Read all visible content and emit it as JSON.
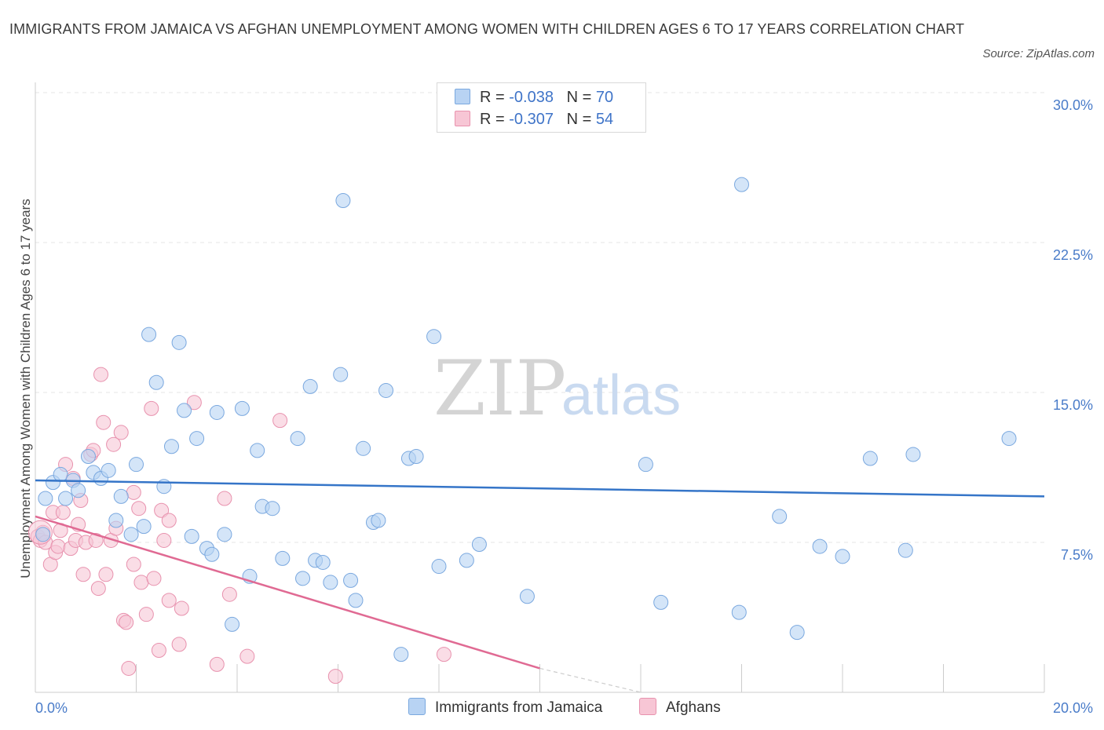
{
  "title": "IMMIGRANTS FROM JAMAICA VS AFGHAN UNEMPLOYMENT AMONG WOMEN WITH CHILDREN AGES 6 TO 17 YEARS CORRELATION CHART",
  "source": "Source: ZipAtlas.com",
  "watermark": {
    "zip": "ZIP",
    "atlas": "atlas"
  },
  "legend": {
    "rows": [
      {
        "r_label": "R =",
        "r_value": "-0.038",
        "n_label": "N =",
        "n_value": "70"
      },
      {
        "r_label": "R =",
        "r_value": "-0.307",
        "n_label": "N =",
        "n_value": "54"
      }
    ]
  },
  "bottom_legend": [
    "Immigrants from Jamaica",
    "Afghans"
  ],
  "colors": {
    "jamaica_fill": "#b8d3f3",
    "jamaica_stroke": "#7aa8df",
    "jamaica_line": "#3575c8",
    "afghan_fill": "#f7c6d5",
    "afghan_stroke": "#e892ae",
    "afghan_line": "#e06a93",
    "tick_text": "#4a7cc9",
    "grid": "#e4e4e4"
  },
  "chart_data": {
    "type": "scatter",
    "title": "IMMIGRANTS FROM JAMAICA VS AFGHAN UNEMPLOYMENT AMONG WOMEN WITH CHILDREN AGES 6 TO 17 YEARS CORRELATION CHART",
    "xlabel": "",
    "ylabel": "Unemployment Among Women with Children Ages 6 to 17 years",
    "xlim": [
      0,
      20
    ],
    "ylim": [
      0,
      30
    ],
    "x_tick_labels": [
      "0.0%",
      "20.0%"
    ],
    "y_ticks": [
      {
        "value": 7.5,
        "label": "7.5%"
      },
      {
        "value": 15,
        "label": "15.0%"
      },
      {
        "value": 22.5,
        "label": "22.5%"
      },
      {
        "value": 30,
        "label": "30.0%"
      }
    ],
    "grid": "horizontal dashed",
    "legend_position": "top-center",
    "series": [
      {
        "name": "Immigrants from Jamaica",
        "r": -0.038,
        "n": 70,
        "trend": {
          "x": [
            0,
            20
          ],
          "y": [
            10.6,
            9.8
          ]
        },
        "points": [
          [
            0.15,
            7.9
          ],
          [
            0.2,
            9.7
          ],
          [
            0.35,
            10.5
          ],
          [
            0.5,
            10.9
          ],
          [
            0.6,
            9.7
          ],
          [
            0.75,
            10.6
          ],
          [
            0.85,
            10.1
          ],
          [
            1.05,
            11.8
          ],
          [
            1.15,
            11.0
          ],
          [
            1.3,
            10.7
          ],
          [
            1.45,
            11.1
          ],
          [
            1.6,
            8.6
          ],
          [
            1.7,
            9.8
          ],
          [
            1.9,
            7.9
          ],
          [
            2.0,
            11.4
          ],
          [
            2.15,
            8.3
          ],
          [
            2.25,
            17.9
          ],
          [
            2.4,
            15.5
          ],
          [
            2.55,
            10.3
          ],
          [
            2.7,
            12.3
          ],
          [
            2.85,
            17.5
          ],
          [
            2.95,
            14.1
          ],
          [
            3.1,
            7.8
          ],
          [
            3.2,
            12.7
          ],
          [
            3.4,
            7.2
          ],
          [
            3.5,
            6.9
          ],
          [
            3.6,
            14.0
          ],
          [
            3.75,
            7.9
          ],
          [
            3.9,
            3.4
          ],
          [
            4.1,
            14.2
          ],
          [
            4.25,
            5.8
          ],
          [
            4.4,
            12.1
          ],
          [
            4.5,
            9.3
          ],
          [
            4.7,
            9.2
          ],
          [
            4.9,
            6.7
          ],
          [
            5.2,
            12.7
          ],
          [
            5.3,
            5.7
          ],
          [
            5.45,
            15.3
          ],
          [
            5.55,
            6.6
          ],
          [
            5.7,
            6.5
          ],
          [
            5.85,
            5.5
          ],
          [
            6.05,
            15.9
          ],
          [
            6.1,
            24.6
          ],
          [
            6.25,
            5.6
          ],
          [
            6.35,
            4.6
          ],
          [
            6.5,
            12.2
          ],
          [
            6.7,
            8.5
          ],
          [
            6.8,
            8.6
          ],
          [
            6.95,
            15.1
          ],
          [
            7.25,
            1.9
          ],
          [
            7.4,
            11.7
          ],
          [
            7.55,
            11.8
          ],
          [
            7.9,
            17.8
          ],
          [
            8.0,
            6.3
          ],
          [
            8.55,
            6.6
          ],
          [
            8.8,
            7.4
          ],
          [
            9.25,
            30.0
          ],
          [
            9.75,
            4.8
          ],
          [
            12.1,
            11.4
          ],
          [
            12.4,
            4.5
          ],
          [
            14.0,
            25.4
          ],
          [
            13.95,
            4.0
          ],
          [
            14.75,
            8.8
          ],
          [
            15.1,
            3.0
          ],
          [
            15.55,
            7.3
          ],
          [
            16.0,
            6.8
          ],
          [
            16.55,
            11.7
          ],
          [
            17.25,
            7.1
          ],
          [
            17.4,
            11.9
          ],
          [
            19.3,
            12.7
          ]
        ]
      },
      {
        "name": "Afghans",
        "r": -0.307,
        "n": 54,
        "trend": {
          "x": [
            0,
            10.0
          ],
          "y": [
            8.8,
            1.2
          ]
        },
        "trend_dashed": {
          "x": [
            10.0,
            12.0
          ],
          "y": [
            1.2,
            0.0
          ]
        },
        "points": [
          [
            0.05,
            7.8
          ],
          [
            0.1,
            7.6
          ],
          [
            0.15,
            8.0
          ],
          [
            0.2,
            7.5
          ],
          [
            0.3,
            6.4
          ],
          [
            0.35,
            9.0
          ],
          [
            0.4,
            7.0
          ],
          [
            0.45,
            7.3
          ],
          [
            0.5,
            8.1
          ],
          [
            0.55,
            9.0
          ],
          [
            0.6,
            11.4
          ],
          [
            0.7,
            7.2
          ],
          [
            0.75,
            10.7
          ],
          [
            0.8,
            7.6
          ],
          [
            0.85,
            8.4
          ],
          [
            0.9,
            9.6
          ],
          [
            0.95,
            5.9
          ],
          [
            1.0,
            7.5
          ],
          [
            1.1,
            11.9
          ],
          [
            1.15,
            12.1
          ],
          [
            1.2,
            7.6
          ],
          [
            1.25,
            5.2
          ],
          [
            1.3,
            15.9
          ],
          [
            1.35,
            13.5
          ],
          [
            1.4,
            5.9
          ],
          [
            1.5,
            7.6
          ],
          [
            1.55,
            12.4
          ],
          [
            1.6,
            8.2
          ],
          [
            1.7,
            13.0
          ],
          [
            1.75,
            3.6
          ],
          [
            1.8,
            3.5
          ],
          [
            1.85,
            1.2
          ],
          [
            1.95,
            10.0
          ],
          [
            1.95,
            6.4
          ],
          [
            2.05,
            9.2
          ],
          [
            2.1,
            5.5
          ],
          [
            2.2,
            3.9
          ],
          [
            2.3,
            14.2
          ],
          [
            2.35,
            5.7
          ],
          [
            2.45,
            2.1
          ],
          [
            2.5,
            9.1
          ],
          [
            2.55,
            7.6
          ],
          [
            2.65,
            4.6
          ],
          [
            2.65,
            8.6
          ],
          [
            2.85,
            2.4
          ],
          [
            2.9,
            4.2
          ],
          [
            3.15,
            14.5
          ],
          [
            3.6,
            1.4
          ],
          [
            3.75,
            9.7
          ],
          [
            3.85,
            4.9
          ],
          [
            4.2,
            1.8
          ],
          [
            4.85,
            13.6
          ],
          [
            5.95,
            0.8
          ],
          [
            8.1,
            1.9
          ]
        ]
      }
    ]
  }
}
